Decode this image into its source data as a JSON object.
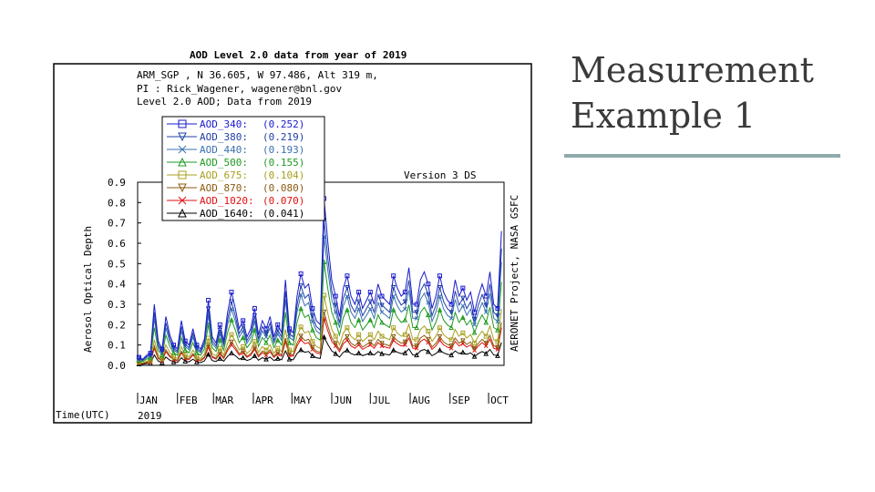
{
  "slide": {
    "title_line1": "Measurement",
    "title_line2": "Example 1",
    "rule_color": "#8fabac"
  },
  "chart_data": {
    "type": "line",
    "title": "AOD Level 2.0 data from year of 2019",
    "header": [
      "ARM_SGP , N 36.605, W  97.486, Alt 319 m,",
      "PI : Rick_Wagener, wagener@bnl.gov",
      "Level 2.0 AOD; Data from 2019"
    ],
    "version_label": "Version 3 DS",
    "right_label": "AERONET Project, NASA GSFC",
    "ylabel": "Aerosol Optical Depth",
    "xlabel": "Time(UTC)",
    "year_label": "2019",
    "ylim": [
      0,
      0.9
    ],
    "yticks": [
      "0.0",
      "0.1",
      "0.2",
      "0.3",
      "0.4",
      "0.5",
      "0.6",
      "0.7",
      "0.8",
      "0.9"
    ],
    "x_range_days": [
      0,
      285
    ],
    "months": [
      {
        "label": "JAN",
        "day": 0
      },
      {
        "label": "FEB",
        "day": 31
      },
      {
        "label": "MAR",
        "day": 59
      },
      {
        "label": "APR",
        "day": 90
      },
      {
        "label": "MAY",
        "day": 120
      },
      {
        "label": "JUN",
        "day": 151
      },
      {
        "label": "JUL",
        "day": 181
      },
      {
        "label": "AUG",
        "day": 212
      },
      {
        "label": "SEP",
        "day": 243
      },
      {
        "label": "OCT",
        "day": 273
      }
    ],
    "legend": [
      {
        "name": "AOD_340",
        "mean": "(0.252)",
        "color": "#1a1acc",
        "marker": "square"
      },
      {
        "name": "AOD_380",
        "mean": "(0.219)",
        "color": "#1f3fa8",
        "marker": "tri-down"
      },
      {
        "name": "AOD_440",
        "mean": "(0.193)",
        "color": "#3a70b0",
        "marker": "x"
      },
      {
        "name": "AOD_500",
        "mean": "(0.155)",
        "color": "#1f9a1f",
        "marker": "tri-up"
      },
      {
        "name": "AOD_675",
        "mean": "(0.104)",
        "color": "#a8a020",
        "marker": "square"
      },
      {
        "name": "AOD_870",
        "mean": "(0.080)",
        "color": "#8a5a10",
        "marker": "tri-down"
      },
      {
        "name": "AOD_1020",
        "mean": "(0.070)",
        "color": "#e01010",
        "marker": "x"
      },
      {
        "name": "AOD_1640",
        "mean": "(0.041)",
        "color": "#000000",
        "marker": "tri-up"
      }
    ],
    "scale_factors": [
      1.0,
      0.87,
      0.77,
      0.62,
      0.42,
      0.32,
      0.28,
      0.17
    ],
    "base_series_340": {
      "x": [
        1,
        4,
        7,
        10,
        13,
        16,
        19,
        22,
        25,
        28,
        31,
        34,
        37,
        40,
        43,
        46,
        49,
        52,
        55,
        58,
        61,
        64,
        67,
        70,
        73,
        76,
        79,
        82,
        85,
        88,
        91,
        94,
        97,
        100,
        103,
        106,
        109,
        112,
        115,
        118,
        121,
        124,
        127,
        130,
        133,
        136,
        139,
        142,
        145,
        148,
        151,
        154,
        157,
        160,
        163,
        166,
        169,
        172,
        175,
        178,
        181,
        184,
        187,
        190,
        193,
        196,
        199,
        202,
        205,
        208,
        211,
        214,
        217,
        220,
        223,
        226,
        229,
        232,
        235,
        238,
        241,
        244,
        247,
        250,
        253,
        256,
        259,
        262,
        265,
        268,
        271,
        274,
        277,
        280,
        283
      ],
      "values": [
        0.04,
        0.03,
        0.05,
        0.06,
        0.3,
        0.12,
        0.08,
        0.24,
        0.15,
        0.1,
        0.08,
        0.22,
        0.12,
        0.1,
        0.18,
        0.1,
        0.08,
        0.13,
        0.32,
        0.14,
        0.11,
        0.2,
        0.12,
        0.26,
        0.36,
        0.28,
        0.18,
        0.22,
        0.14,
        0.18,
        0.28,
        0.15,
        0.22,
        0.18,
        0.24,
        0.14,
        0.2,
        0.16,
        0.42,
        0.18,
        0.16,
        0.34,
        0.45,
        0.38,
        0.4,
        0.28,
        0.22,
        0.2,
        0.82,
        0.6,
        0.42,
        0.34,
        0.24,
        0.38,
        0.44,
        0.34,
        0.3,
        0.36,
        0.28,
        0.32,
        0.36,
        0.3,
        0.4,
        0.34,
        0.32,
        0.3,
        0.44,
        0.38,
        0.34,
        0.36,
        0.48,
        0.3,
        0.3,
        0.42,
        0.46,
        0.4,
        0.28,
        0.34,
        0.44,
        0.36,
        0.32,
        0.3,
        0.42,
        0.34,
        0.38,
        0.32,
        0.36,
        0.26,
        0.34,
        0.4,
        0.34,
        0.46,
        0.3,
        0.28,
        0.66
      ]
    }
  }
}
